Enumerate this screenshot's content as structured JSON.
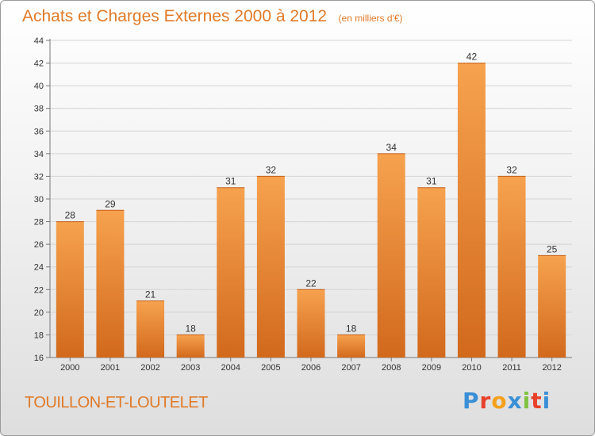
{
  "colors": {
    "accent": "#e07a28",
    "bar_light": "#f6a24e",
    "bar_dark": "#d2691c"
  },
  "header": {
    "title": "Achats et Charges Externes 2000 à 2012",
    "unit": "(en milliers d'€)"
  },
  "footer": {
    "city": "TOUILLON-ET-LOUTELET",
    "logo": {
      "text": "Proxiti",
      "letters": [
        {
          "char": "P",
          "color": "#3a8fd6"
        },
        {
          "char": "r",
          "color": "#e8402a"
        },
        {
          "char": "o",
          "color": "#f3a01c"
        },
        {
          "char": "x",
          "color": "#3a8fd6"
        },
        {
          "char": "i",
          "color": "#7fc241"
        },
        {
          "char": "t",
          "color": "#e8402a"
        },
        {
          "char": "i",
          "color": "#3a8fd6"
        }
      ]
    }
  },
  "chart_data": {
    "type": "bar",
    "categories": [
      "2000",
      "2001",
      "2002",
      "2003",
      "2004",
      "2005",
      "2006",
      "2007",
      "2008",
      "2009",
      "2010",
      "2011",
      "2012"
    ],
    "values": [
      28,
      29,
      21,
      18,
      31,
      32,
      22,
      18,
      34,
      31,
      42,
      32,
      25
    ],
    "ylim": [
      16,
      44
    ],
    "yticks": [
      16,
      18,
      20,
      22,
      24,
      26,
      28,
      30,
      32,
      34,
      36,
      38,
      40,
      42,
      44
    ],
    "grid": true
  }
}
